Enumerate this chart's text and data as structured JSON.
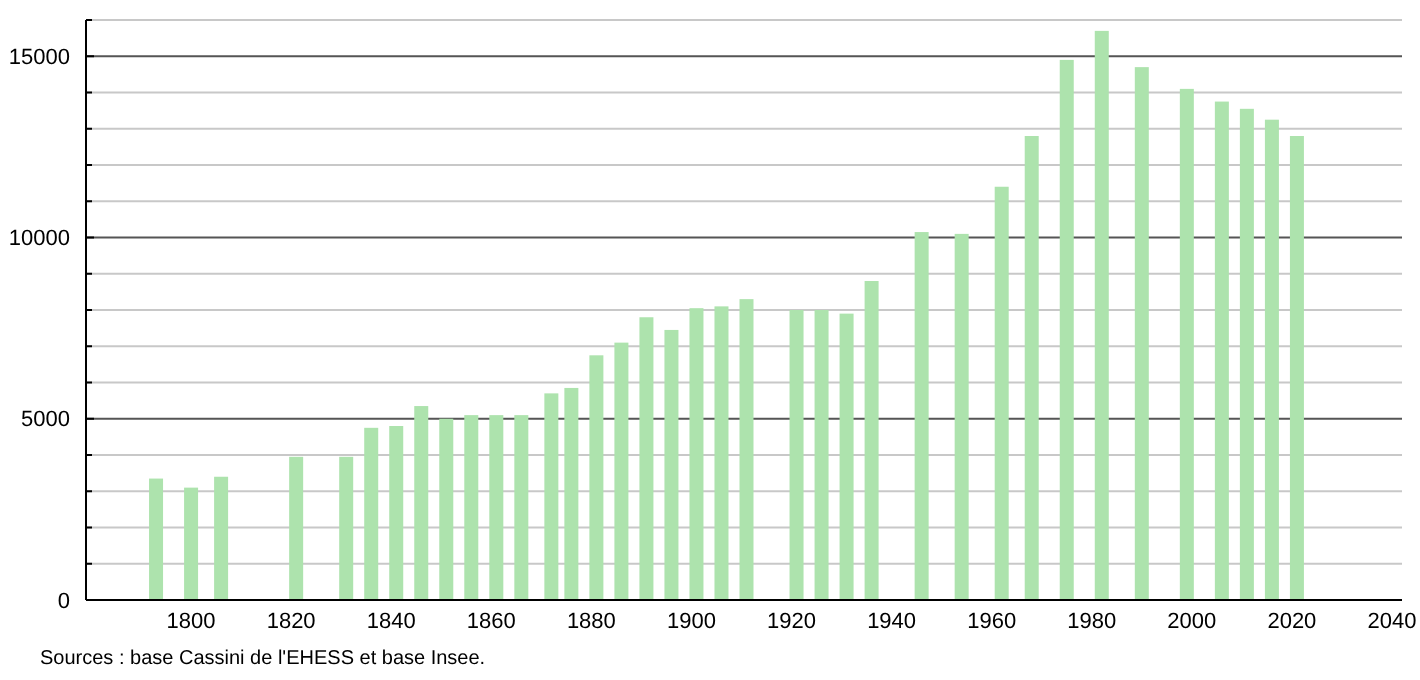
{
  "chart_data": {
    "type": "bar",
    "annotations": [
      "Sources : base Cassini de l'EHESS et base Insee."
    ],
    "x": [
      1793,
      1800,
      1806,
      1821,
      1831,
      1836,
      1841,
      1846,
      1851,
      1856,
      1861,
      1866,
      1872,
      1876,
      1881,
      1886,
      1891,
      1896,
      1901,
      1906,
      1911,
      1921,
      1926,
      1931,
      1936,
      1946,
      1954,
      1962,
      1968,
      1975,
      1982,
      1990,
      1999,
      2006,
      2011,
      2016,
      2021
    ],
    "values": [
      3350,
      3100,
      3400,
      3950,
      3950,
      4750,
      4800,
      5350,
      5000,
      5100,
      5100,
      5100,
      5700,
      5850,
      6750,
      7100,
      7800,
      7450,
      8050,
      8100,
      8300,
      8000,
      8000,
      7900,
      8800,
      10150,
      10100,
      11400,
      12800,
      14900,
      15700,
      14700,
      14100,
      13750,
      13550,
      13250,
      12800
    ],
    "color": "#ade3ad",
    "xlim": [
      1779,
      2042
    ],
    "xticks": [
      1800,
      1820,
      1840,
      1860,
      1880,
      1900,
      1920,
      1940,
      1960,
      1980,
      2000,
      2020,
      2040
    ],
    "ylim": [
      0,
      16000
    ],
    "yticks": [
      0,
      {
        "value": 1000,
        "label": null
      },
      {
        "value": 2000,
        "label": null
      },
      {
        "value": 3000,
        "label": null
      },
      {
        "value": 4000,
        "label": null
      },
      5000,
      {
        "value": 6000,
        "label": null
      },
      {
        "value": 7000,
        "label": null
      },
      {
        "value": 8000,
        "label": null
      },
      {
        "value": 9000,
        "label": null
      },
      10000,
      {
        "value": 11000,
        "label": null
      },
      {
        "value": 12000,
        "label": null
      },
      {
        "value": 13000,
        "label": null
      },
      {
        "value": 14000,
        "label": null
      },
      15000,
      {
        "value": 16000,
        "label": null
      }
    ],
    "grid": true
  }
}
